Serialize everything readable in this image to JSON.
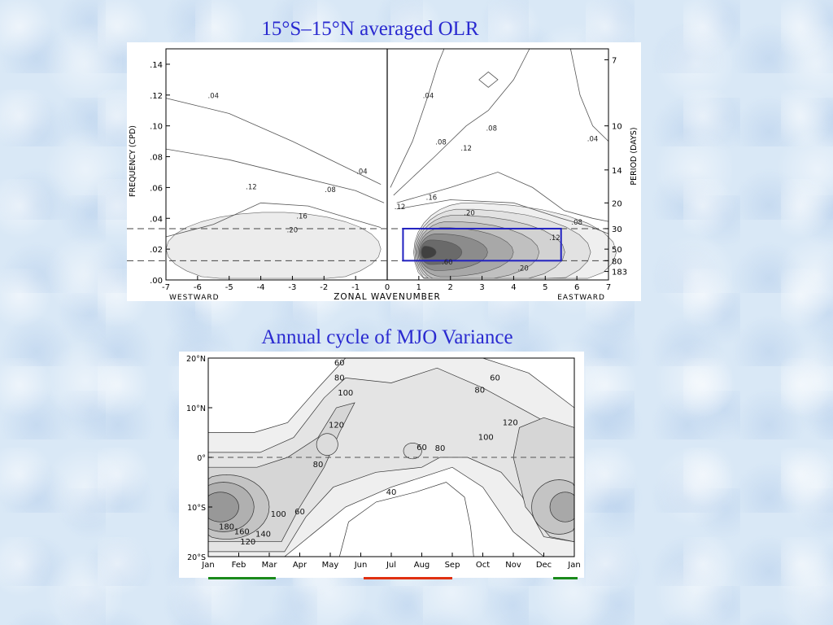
{
  "slide": {
    "top_title": "15°S–15°N averaged OLR",
    "bottom_title": "Annual cycle of  MJO Variance"
  },
  "chart_data": [
    {
      "type": "heatmap",
      "title": "15°S–15°N averaged OLR",
      "xlabel": "ZONAL WAVENUMBER",
      "xlabel_left": "WESTWARD",
      "xlabel_right": "EASTWARD",
      "ylabel": "FREQUENCY (CPD)",
      "ylabel_right": "PERIOD (DAYS)",
      "xlim": [
        -7,
        7
      ],
      "ylim": [
        0.0,
        0.15
      ],
      "x_ticks": [
        -7,
        -6,
        -5,
        -4,
        -3,
        -2,
        -1,
        0,
        1,
        2,
        3,
        4,
        5,
        6,
        7
      ],
      "y_ticks": [
        0.0,
        0.02,
        0.04,
        0.06,
        0.08,
        0.1,
        0.12,
        0.14
      ],
      "y_tick_labels": [
        ".00",
        ".02",
        ".04",
        ".06",
        ".08",
        ".10",
        ".12",
        ".14"
      ],
      "period_ticks": [
        {
          "label": "7",
          "freq": 0.1429
        },
        {
          "label": "10",
          "freq": 0.1
        },
        {
          "label": "14",
          "freq": 0.0714
        },
        {
          "label": "20",
          "freq": 0.05
        },
        {
          "label": "30",
          "freq": 0.0333
        },
        {
          "label": "50",
          "freq": 0.02
        },
        {
          "label": "80",
          "freq": 0.0125
        },
        {
          "label": "183",
          "freq": 0.0055
        }
      ],
      "dashed_lines_freq": [
        0.0333,
        0.0125
      ],
      "highlight_box": {
        "x": [
          0.5,
          5.5
        ],
        "y": [
          0.0125,
          0.0333
        ],
        "color": "#2020c0"
      },
      "contour_labels": [
        {
          "text": ".04",
          "x": -5.5,
          "y": 0.118
        },
        {
          "text": ".04",
          "x": 1.3,
          "y": 0.118
        },
        {
          "text": ".04",
          "x": 6.5,
          "y": 0.09
        },
        {
          "text": ".04",
          "x": -0.8,
          "y": 0.069
        },
        {
          "text": ".08",
          "x": 1.7,
          "y": 0.088
        },
        {
          "text": ".08",
          "x": 3.3,
          "y": 0.097
        },
        {
          "text": ".08",
          "x": -1.8,
          "y": 0.057
        },
        {
          "text": ".08",
          "x": 6.0,
          "y": 0.036
        },
        {
          "text": ".12",
          "x": 2.5,
          "y": 0.084
        },
        {
          "text": ".12",
          "x": -4.3,
          "y": 0.059
        },
        {
          "text": ".12",
          "x": 0.4,
          "y": 0.046
        },
        {
          "text": ".12",
          "x": 5.3,
          "y": 0.026
        },
        {
          "text": ".16",
          "x": 1.4,
          "y": 0.052
        },
        {
          "text": ".16",
          "x": -2.7,
          "y": 0.04
        },
        {
          "text": ".20",
          "x": 2.6,
          "y": 0.042
        },
        {
          "text": ".20",
          "x": -3.0,
          "y": 0.031
        },
        {
          "text": ".20",
          "x": 4.3,
          "y": 0.006
        },
        {
          "text": ".60",
          "x": 1.9,
          "y": 0.01
        }
      ],
      "fill_levels": [
        0.12,
        0.16,
        0.2,
        0.24,
        0.32,
        0.4,
        0.6,
        0.8
      ]
    },
    {
      "type": "heatmap",
      "title": "Annual cycle of  MJO Variance",
      "x_tick_labels": [
        "Jan",
        "Feb",
        "Mar",
        "Apr",
        "May",
        "Jun",
        "Jul",
        "Aug",
        "Sep",
        "Oct",
        "Nov",
        "Dec",
        "Jan"
      ],
      "y_tick_labels": [
        "20°N",
        "10°N",
        "0°",
        "10°S",
        "20°S"
      ],
      "ylim": [
        -20,
        20
      ],
      "dashed_line_lat": 0,
      "contour_labels": [
        {
          "text": "60",
          "month": 5.3,
          "lat": 18.5
        },
        {
          "text": "80",
          "month": 5.3,
          "lat": 15.5
        },
        {
          "text": "100",
          "month": 5.5,
          "lat": 12.5
        },
        {
          "text": "120",
          "month": 5.2,
          "lat": 6
        },
        {
          "text": "60",
          "month": 8.0,
          "lat": 1.5
        },
        {
          "text": "80",
          "month": 8.6,
          "lat": 1.3
        },
        {
          "text": "80",
          "month": 4.6,
          "lat": -2
        },
        {
          "text": "100",
          "month": 3.3,
          "lat": -12
        },
        {
          "text": "60",
          "month": 4.0,
          "lat": -11.5
        },
        {
          "text": "40",
          "month": 7.0,
          "lat": -7.5
        },
        {
          "text": "60",
          "month": 10.4,
          "lat": 15.5
        },
        {
          "text": "80",
          "month": 9.9,
          "lat": 13
        },
        {
          "text": "100",
          "month": 10.1,
          "lat": 3.5
        },
        {
          "text": "120",
          "month": 10.9,
          "lat": 6.5
        },
        {
          "text": "180",
          "month": 1.6,
          "lat": -14.5
        },
        {
          "text": "160",
          "month": 2.1,
          "lat": -15.5
        },
        {
          "text": "140",
          "month": 2.8,
          "lat": -16
        },
        {
          "text": "120",
          "month": 2.3,
          "lat": -17.5
        }
      ],
      "season_bars": [
        {
          "from": 1.0,
          "to": 3.2,
          "color": "#1a8a1a"
        },
        {
          "from": 6.1,
          "to": 9.0,
          "color": "#e03010"
        },
        {
          "from": 12.3,
          "to": 13.1,
          "color": "#1a8a1a"
        }
      ]
    }
  ]
}
